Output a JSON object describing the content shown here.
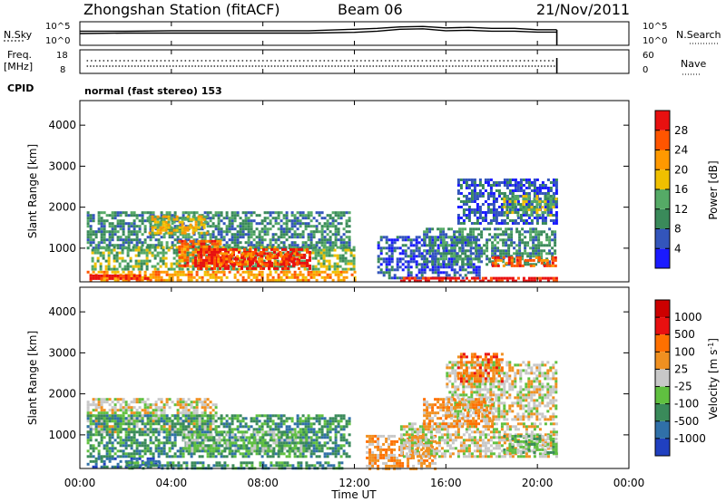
{
  "header": {
    "station": "Zhongshan Station (fitACF)",
    "beam": "Beam 06",
    "date": "21/Nov/2011"
  },
  "noise_panel": {
    "left_label": "N.Sky",
    "right_label": "N.Search",
    "left_ticks": [
      "10^5",
      "10^0"
    ],
    "right_ticks": [
      "10^5",
      "10^0"
    ]
  },
  "freq_panel": {
    "left_label_1": "Freq.",
    "left_label_2": "[MHz]",
    "right_label": "Nave",
    "left_ticks": [
      "18",
      "8"
    ],
    "right_ticks": [
      "60",
      "0"
    ]
  },
  "cpid": {
    "label": "CPID",
    "text": "normal (fast stereo) 153"
  },
  "x_axis": {
    "label": "Time UT",
    "ticks": [
      "00:00",
      "04:00",
      "08:00",
      "12:00",
      "16:00",
      "20:00",
      "00:00"
    ],
    "range_hours": [
      0,
      24
    ],
    "data_end_hour": 20.85
  },
  "y_axis": {
    "label": "Slant Range [km]",
    "ticks": [
      "1000",
      "2000",
      "3000",
      "4000"
    ],
    "range_km": [
      180,
      4600
    ]
  },
  "power_scale": {
    "label": "Power [dB]",
    "ticks": [
      "4",
      "8",
      "12",
      "16",
      "20",
      "24",
      "28"
    ],
    "colors": [
      "#1a1aff",
      "#3355bb",
      "#3a8a5a",
      "#55aa66",
      "#f0c000",
      "#ff9900",
      "#ff5500",
      "#e81010"
    ]
  },
  "velocity_scale": {
    "label": "Velocity",
    "unit": "[m s",
    "unit_sup": "-1",
    "unit_end": "]",
    "ticks": [
      "1000",
      "500",
      "100",
      "25",
      "-25",
      "-100",
      "-500",
      "-1000"
    ],
    "colors": [
      "#2040c0",
      "#3070a8",
      "#3a8a5a",
      "#60c040",
      "#c8c8c8",
      "#f09020",
      "#ff7000",
      "#e81010",
      "#cc0000"
    ]
  },
  "chart_data": [
    {
      "type": "line",
      "title": "N.Sky / N.Search",
      "x": [
        0,
        2,
        4,
        6,
        8,
        10,
        12,
        13,
        14,
        15,
        16,
        17,
        18,
        19,
        20,
        20.85
      ],
      "series": [
        {
          "values": [
            0.6,
            0.6,
            0.62,
            0.62,
            0.62,
            0.62,
            0.68,
            0.72,
            0.78,
            0.8,
            0.74,
            0.76,
            0.72,
            0.72,
            0.66,
            0.66
          ]
        },
        {
          "values": [
            0.5,
            0.52,
            0.52,
            0.52,
            0.52,
            0.52,
            0.55,
            0.6,
            0.68,
            0.7,
            0.62,
            0.64,
            0.6,
            0.6,
            0.56,
            0.56
          ]
        }
      ]
    },
    {
      "type": "scatter",
      "title": "Freq. / Nave",
      "x": [
        0,
        4,
        8,
        12,
        16,
        20,
        20.85
      ],
      "series": [
        {
          "values": [
            12,
            12,
            12,
            12,
            12,
            12,
            12
          ]
        },
        {
          "values": [
            11,
            11,
            11,
            11,
            11,
            11,
            11
          ]
        }
      ]
    },
    {
      "type": "heatmap",
      "title": "Power [dB]",
      "xlabel": "Time UT",
      "ylabel": "Slant Range [km]",
      "blobs": [
        {
          "t0": 0.3,
          "t1": 11.8,
          "r0": 1000,
          "r1": 1900,
          "level": 2
        },
        {
          "t0": 0.5,
          "t1": 12.0,
          "r0": 500,
          "r1": 1050,
          "level": 3
        },
        {
          "t0": 3.0,
          "t1": 5.5,
          "r0": 1400,
          "r1": 1800,
          "level": 4
        },
        {
          "t0": 4.3,
          "t1": 6.2,
          "r0": 600,
          "r1": 1200,
          "level": 6
        },
        {
          "t0": 5.0,
          "t1": 10.0,
          "r0": 500,
          "r1": 1000,
          "level": 7
        },
        {
          "t0": 6.0,
          "t1": 9.5,
          "r0": 600,
          "r1": 900,
          "level": 6
        },
        {
          "t0": 0.3,
          "t1": 12.0,
          "r0": 250,
          "r1": 450,
          "level": 5
        },
        {
          "t0": 0.3,
          "t1": 3.0,
          "r0": 280,
          "r1": 360,
          "level": 7
        },
        {
          "t0": 13.0,
          "t1": 17.5,
          "r0": 300,
          "r1": 1300,
          "level": 1
        },
        {
          "t0": 15.0,
          "t1": 20.8,
          "r0": 600,
          "r1": 1500,
          "level": 2
        },
        {
          "t0": 18.0,
          "t1": 20.8,
          "r0": 600,
          "r1": 800,
          "level": 6
        },
        {
          "t0": 16.5,
          "t1": 20.8,
          "r0": 1600,
          "r1": 2700,
          "level": 1
        },
        {
          "t0": 18.5,
          "t1": 20.8,
          "r0": 1800,
          "r1": 2300,
          "level": 3
        },
        {
          "t0": 14.0,
          "t1": 20.8,
          "r0": 200,
          "r1": 300,
          "level": 7
        }
      ]
    },
    {
      "type": "heatmap",
      "title": "Velocity",
      "xlabel": "Time UT",
      "ylabel": "Slant Range [km]",
      "blobs": [
        {
          "t0": 0.3,
          "t1": 6.0,
          "r0": 1100,
          "r1": 1900,
          "level": 4
        },
        {
          "t0": 0.3,
          "t1": 11.8,
          "r0": 500,
          "r1": 1500,
          "level": 2
        },
        {
          "t0": 0.3,
          "t1": 3.5,
          "r0": 200,
          "r1": 450,
          "level": 1
        },
        {
          "t0": 2.0,
          "t1": 11.5,
          "r0": 200,
          "r1": 350,
          "level": 2
        },
        {
          "t0": 4.5,
          "t1": 10.0,
          "r0": 600,
          "r1": 1100,
          "level": 3
        },
        {
          "t0": 12.5,
          "t1": 15.5,
          "r0": 200,
          "r1": 1000,
          "level": 5
        },
        {
          "t0": 14.0,
          "t1": 20.8,
          "r0": 500,
          "r1": 1300,
          "level": 4
        },
        {
          "t0": 16.0,
          "t1": 20.8,
          "r0": 1400,
          "r1": 2800,
          "level": 4
        },
        {
          "t0": 16.5,
          "t1": 18.5,
          "r0": 2300,
          "r1": 3000,
          "level": 6
        },
        {
          "t0": 15.0,
          "t1": 18.0,
          "r0": 1200,
          "r1": 1900,
          "level": 5
        },
        {
          "t0": 18.5,
          "t1": 20.8,
          "r0": 600,
          "r1": 1000,
          "level": 3
        }
      ]
    }
  ]
}
